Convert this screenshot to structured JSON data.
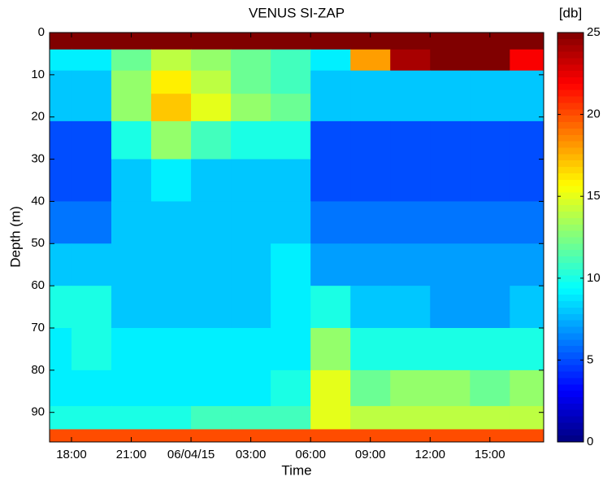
{
  "chart_data": {
    "type": "heatmap",
    "title": "VENUS SI-ZAP",
    "x_label": "Time",
    "y_label": "Depth (m)",
    "colorbar_label": "[db]",
    "colormap": "jet",
    "xlim": [
      16.9,
      41.7
    ],
    "xticks": [
      {
        "value": 18,
        "label": "18:00"
      },
      {
        "value": 21,
        "label": "21:00"
      },
      {
        "value": 24,
        "label": "06/04/15"
      },
      {
        "value": 27,
        "label": "03:00"
      },
      {
        "value": 30,
        "label": "06:00"
      },
      {
        "value": 33,
        "label": "09:00"
      },
      {
        "value": 36,
        "label": "12:00"
      },
      {
        "value": 39,
        "label": "15:00"
      }
    ],
    "ylim": [
      0,
      97
    ],
    "y_reversed": true,
    "yticks": [
      0,
      10,
      20,
      30,
      40,
      50,
      60,
      70,
      80,
      90
    ],
    "clim": [
      0,
      25
    ],
    "cticks": [
      0,
      5,
      10,
      15,
      20,
      25
    ],
    "x": [
      17,
      19,
      21,
      23,
      25,
      27,
      29,
      31,
      33,
      35,
      37,
      39,
      41
    ],
    "y": [
      2,
      6,
      12,
      17,
      25,
      35,
      45,
      55,
      65,
      75,
      85,
      92,
      96
    ],
    "z": [
      [
        25,
        25,
        25,
        25,
        25,
        25,
        25,
        25,
        25,
        25,
        25,
        25,
        25
      ],
      [
        9,
        9,
        12,
        14,
        13,
        12,
        11,
        9,
        18,
        24,
        25,
        25,
        22
      ],
      [
        8,
        8,
        13,
        16,
        14,
        12,
        11,
        8,
        8,
        8,
        8,
        8,
        8
      ],
      [
        8,
        8,
        13,
        17,
        15,
        13,
        12,
        8,
        8,
        8,
        8,
        8,
        8
      ],
      [
        5,
        5,
        10,
        13,
        11,
        10,
        10,
        5,
        5,
        5,
        5,
        5,
        5
      ],
      [
        5,
        5,
        8,
        9,
        8,
        8,
        8,
        5,
        5,
        5,
        5,
        5,
        5
      ],
      [
        6,
        6,
        8,
        8,
        8,
        8,
        8,
        6,
        6,
        6,
        6,
        6,
        6
      ],
      [
        8,
        8,
        8,
        8,
        8,
        8,
        9,
        7,
        7,
        7,
        7,
        7,
        7
      ],
      [
        10,
        10,
        8,
        8,
        8,
        8,
        9,
        10,
        8,
        8,
        7,
        7,
        8
      ],
      [
        9,
        10,
        9,
        9,
        9,
        9,
        9,
        13,
        10,
        10,
        10,
        10,
        10
      ],
      [
        9,
        9,
        9,
        9,
        9,
        9,
        10,
        15,
        12,
        13,
        13,
        12,
        13
      ],
      [
        10,
        10,
        10,
        10,
        11,
        11,
        11,
        15,
        14,
        14,
        14,
        14,
        14
      ],
      [
        20,
        20,
        20,
        20,
        20,
        20,
        20,
        20,
        20,
        20,
        20,
        20,
        20
      ]
    ]
  }
}
